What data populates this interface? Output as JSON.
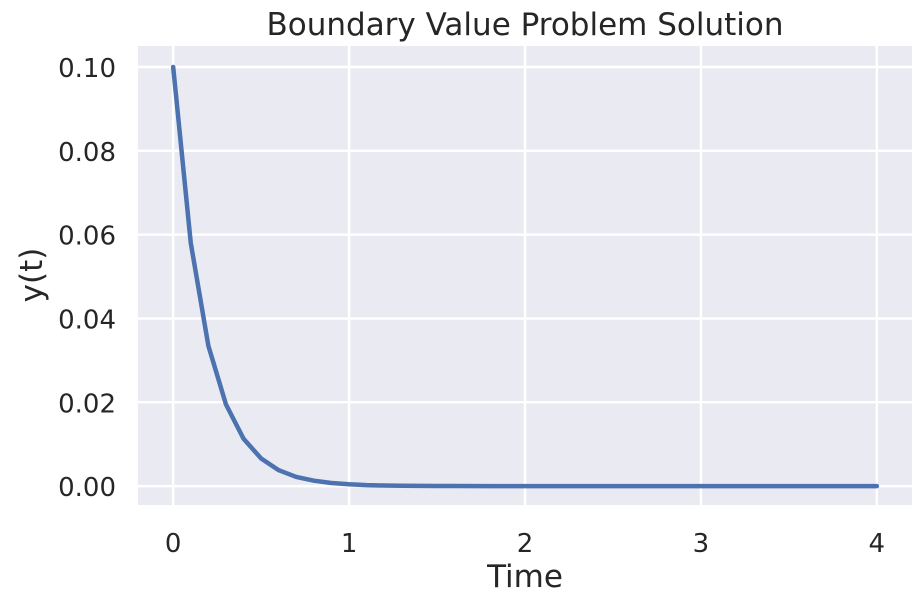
{
  "chart_data": {
    "type": "line",
    "title": "Boundary Value Problem Solution",
    "xlabel": "Time",
    "ylabel": "y(t)",
    "xlim": [
      -0.2,
      4.2
    ],
    "ylim": [
      -0.0045,
      0.105
    ],
    "x_ticks": [
      0,
      1,
      2,
      3,
      4
    ],
    "x_tick_labels": [
      "0",
      "1",
      "2",
      "3",
      "4"
    ],
    "y_ticks": [
      0.0,
      0.02,
      0.04,
      0.06,
      0.08,
      0.1
    ],
    "y_tick_labels": [
      "0.00",
      "0.02",
      "0.04",
      "0.06",
      "0.08",
      "0.10"
    ],
    "grid": true,
    "colors": {
      "background": "#eaeaf2",
      "grid": "#ffffff",
      "line": "#4c72b0",
      "text": "#262626"
    },
    "series": [
      {
        "x": [
          0,
          0.1,
          0.2,
          0.3,
          0.4,
          0.5,
          0.6,
          0.7,
          0.8,
          0.9,
          1.0,
          1.1,
          1.2,
          1.3,
          1.4,
          1.5,
          1.6,
          1.8,
          2.0,
          2.5,
          3.0,
          3.5,
          4.0
        ],
        "values": [
          0.1,
          0.058,
          0.0335,
          0.0195,
          0.0113,
          0.0066,
          0.0038,
          0.0022,
          0.0013,
          0.00075,
          0.00045,
          0.00025,
          0.00015,
          9e-05,
          5e-05,
          3e-05,
          2e-05,
          1e-05,
          0.0,
          0.0,
          0.0,
          0.0,
          0.0
        ]
      }
    ]
  }
}
